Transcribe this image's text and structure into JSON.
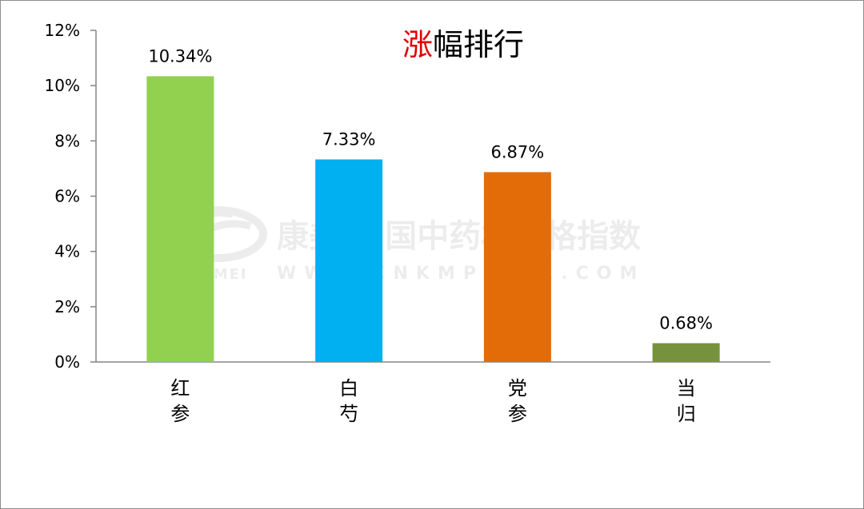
{
  "chart_data": {
    "type": "bar",
    "title_parts": [
      {
        "text": "涨",
        "color": "#e00000"
      },
      {
        "text": "幅排行",
        "color": "#000000"
      }
    ],
    "categories": [
      "红参",
      "白芍",
      "党参",
      "当归"
    ],
    "values": [
      10.34,
      7.33,
      6.87,
      0.68
    ],
    "data_labels": [
      "10.34%",
      "7.33%",
      "6.87%",
      "0.68%"
    ],
    "colors": [
      "#92d050",
      "#00b0f0",
      "#e36c09",
      "#76923c"
    ],
    "ylim": [
      0,
      12
    ],
    "yticks": [
      0,
      2,
      4,
      6,
      8,
      10,
      12
    ],
    "ytick_labels": [
      "0%",
      "2%",
      "4%",
      "6%",
      "8%",
      "10%",
      "12%"
    ],
    "grid": false,
    "legend": "none"
  },
  "watermark": {
    "text": "康美·中国中药材价格指数",
    "subtext_left": "KANGMEI",
    "subtext_right": "WWW.CNKMPRICE.COM",
    "logo": "kangmei-logo"
  }
}
